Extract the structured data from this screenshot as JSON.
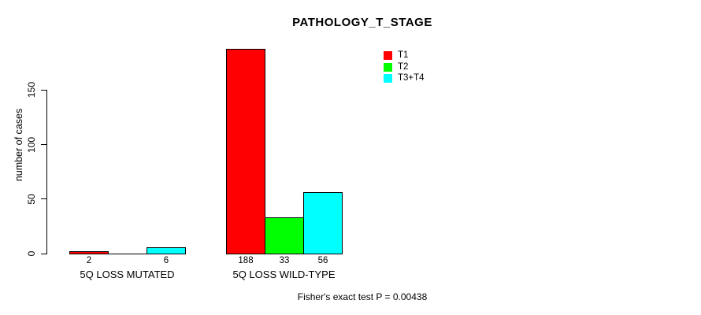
{
  "title": "PATHOLOGY_T_STAGE",
  "footer": "Fisher's exact test P = 0.00438",
  "y_axis": {
    "label": "number of cases"
  },
  "legend": {
    "items": [
      {
        "label": "T1",
        "color": "#FF0000"
      },
      {
        "label": "T2",
        "color": "#00FF00"
      },
      {
        "label": "T3+T4",
        "color": "#00FFFF"
      }
    ]
  },
  "chart_data": {
    "type": "bar",
    "grouped": true,
    "title": "PATHOLOGY_T_STAGE",
    "xlabel": "",
    "ylabel": "number of cases",
    "categories": [
      "5Q LOSS MUTATED",
      "5Q LOSS WILD-TYPE"
    ],
    "series": [
      {
        "name": "T1",
        "color": "#FF0000",
        "values": [
          2,
          188
        ]
      },
      {
        "name": "T2",
        "color": "#00FF00",
        "values": [
          0,
          33
        ]
      },
      {
        "name": "T3+T4",
        "color": "#00FFFF",
        "values": [
          6,
          56
        ]
      }
    ],
    "bar_value_labels_visible": [
      "2",
      "6",
      "188",
      "33",
      "56"
    ],
    "yticks": [
      0,
      50,
      100,
      150
    ],
    "ylim": [
      0,
      195
    ],
    "grid": false,
    "legend_position": "top-right",
    "annotation": "Fisher's exact test P = 0.00438"
  }
}
